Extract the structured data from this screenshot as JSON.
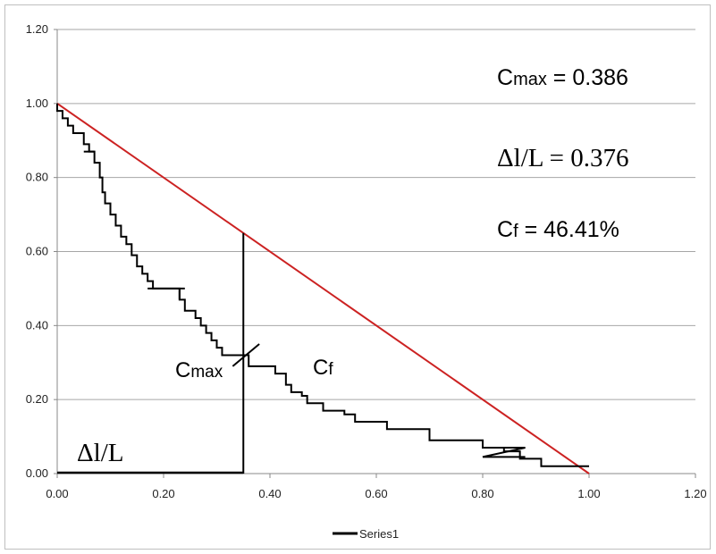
{
  "chart_data": {
    "type": "line",
    "xlim": [
      0,
      1.2
    ],
    "ylim": [
      0,
      1.2
    ],
    "x_ticks": [
      "0.00",
      "0.20",
      "0.40",
      "0.60",
      "0.80",
      "1.00",
      "1.20"
    ],
    "y_ticks": [
      "0.00",
      "0.20",
      "0.40",
      "0.60",
      "0.80",
      "1.00",
      "1.20"
    ],
    "grid": "horizontal",
    "legend": {
      "position": "bottom",
      "label": "Series1"
    },
    "colors": {
      "series": "#000000",
      "diagonal": "#cc2222",
      "grid": "#a6a6a6"
    },
    "series": [
      {
        "name": "Series1",
        "color": "#000000",
        "x": [
          0.0,
          0.0,
          0.01,
          0.01,
          0.02,
          0.02,
          0.03,
          0.03,
          0.05,
          0.05,
          0.06,
          0.06,
          0.07,
          0.07,
          0.08,
          0.08,
          0.085,
          0.085,
          0.09,
          0.09,
          0.1,
          0.1,
          0.11,
          0.11,
          0.12,
          0.12,
          0.13,
          0.13,
          0.14,
          0.14,
          0.15,
          0.15,
          0.16,
          0.16,
          0.17,
          0.17,
          0.18,
          0.18,
          0.19,
          0.19,
          0.2,
          0.2,
          0.23,
          0.23,
          0.24,
          0.24,
          0.26,
          0.26,
          0.27,
          0.27,
          0.28,
          0.28,
          0.29,
          0.29,
          0.3,
          0.3,
          0.31,
          0.31,
          0.33,
          0.33,
          0.36,
          0.36,
          0.37,
          0.37,
          0.41,
          0.41,
          0.43,
          0.43,
          0.44,
          0.44,
          0.46,
          0.46,
          0.47,
          0.47,
          0.48,
          0.48,
          0.5,
          0.5,
          0.52,
          0.52,
          0.54,
          0.54,
          0.56,
          0.56,
          0.59,
          0.59,
          0.62,
          0.62,
          0.7,
          0.7,
          0.8,
          0.8,
          0.84,
          0.84,
          0.87,
          0.87,
          0.88,
          0.88,
          0.91,
          0.91,
          1.0
        ],
        "y": [
          1.0,
          0.98,
          0.98,
          0.96,
          0.96,
          0.94,
          0.94,
          0.92,
          0.92,
          0.89,
          0.89,
          0.87,
          0.87,
          0.84,
          0.84,
          0.8,
          0.8,
          0.76,
          0.76,
          0.73,
          0.73,
          0.7,
          0.7,
          0.67,
          0.67,
          0.64,
          0.64,
          0.62,
          0.62,
          0.59,
          0.59,
          0.56,
          0.56,
          0.54,
          0.54,
          0.52,
          0.52,
          0.5,
          0.5,
          0.5,
          0.5,
          0.5,
          0.5,
          0.47,
          0.47,
          0.44,
          0.44,
          0.42,
          0.42,
          0.4,
          0.4,
          0.38,
          0.38,
          0.36,
          0.36,
          0.34,
          0.34,
          0.32,
          0.32,
          0.32,
          0.32,
          0.29,
          0.29,
          0.29,
          0.29,
          0.27,
          0.27,
          0.24,
          0.24,
          0.22,
          0.22,
          0.21,
          0.21,
          0.19,
          0.19,
          0.19,
          0.19,
          0.17,
          0.17,
          0.17,
          0.17,
          0.16,
          0.16,
          0.14,
          0.14,
          0.14,
          0.14,
          0.12,
          0.12,
          0.09,
          0.09,
          0.07,
          0.07,
          0.06,
          0.06,
          0.04,
          0.04,
          0.04,
          0.04,
          0.02,
          0.02
        ]
      }
    ],
    "overlays": {
      "diagonal": {
        "x": [
          0,
          1
        ],
        "y": [
          1,
          0
        ],
        "color": "#cc2222"
      },
      "vertical_line": {
        "x": 0.35,
        "y_from": 0,
        "y_to": 0.65
      },
      "baseline": {
        "x_from": 0,
        "x_to": 0.35,
        "y": 0
      },
      "cmax_tick": {
        "x": [
          0.33,
          0.38
        ],
        "y": [
          0.29,
          0.35
        ]
      },
      "z_segment": {
        "x": [
          0.8,
          0.88,
          0.8,
          0.88
        ],
        "y": [
          0.07,
          0.07,
          0.045,
          0.045
        ]
      },
      "stub_segments": [
        {
          "x": [
            0.05,
            0.07
          ],
          "y": [
            0.87,
            0.87
          ]
        },
        {
          "x": [
            0.17,
            0.24
          ],
          "y": [
            0.5,
            0.5
          ]
        },
        {
          "x": [
            0.23,
            0.23
          ],
          "y": [
            0.5,
            0.47
          ]
        }
      ]
    },
    "annotations": {
      "cmax_value": {
        "main": "C",
        "sub": "max",
        "rest": " = 0.386"
      },
      "dl_value": "Δl/L = 0.376",
      "cf_value": {
        "main": "C",
        "sub": "f",
        "rest": " = 46.41%"
      },
      "cmax_label": {
        "main": "C",
        "sub": "max"
      },
      "cf_label": {
        "main": "C",
        "sub": "f"
      },
      "dl_label": "Δl/L"
    }
  }
}
